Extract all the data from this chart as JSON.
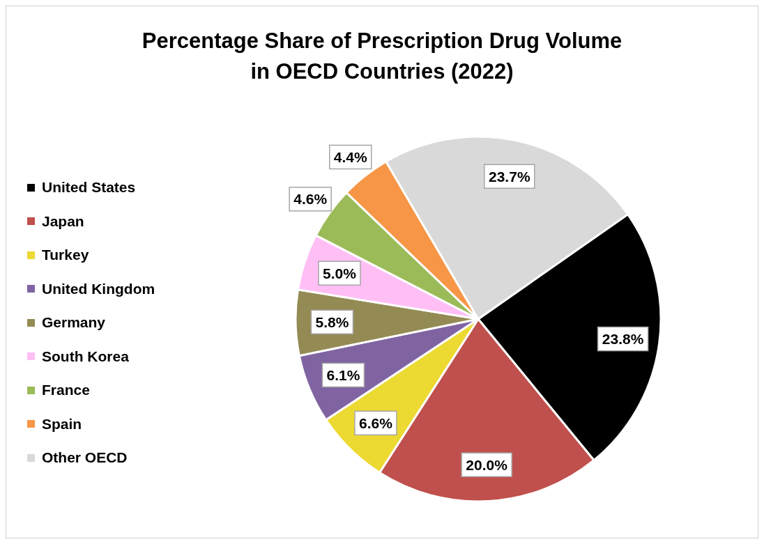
{
  "chart_data": {
    "type": "pie",
    "title": "Percentage Share of Prescription Drug Volume\nin OECD Countries (2022)",
    "categories": [
      "United States",
      "Japan",
      "Turkey",
      "United Kingdom",
      "Germany",
      "South Korea",
      "France",
      "Spain",
      "Other OECD"
    ],
    "values": [
      23.8,
      20.0,
      6.6,
      6.1,
      5.8,
      5.0,
      4.6,
      4.4,
      23.7
    ],
    "value_labels": [
      "23.8%",
      "20.0%",
      "6.6%",
      "6.1%",
      "5.8%",
      "5.0%",
      "4.6%",
      "4.4%",
      "23.7%"
    ],
    "colors": [
      "#000000",
      "#c0504d",
      "#ecd932",
      "#8064a2",
      "#948a54",
      "#ffbff5",
      "#9bbb59",
      "#f79646",
      "#d9d9d9"
    ],
    "legend": "left"
  }
}
